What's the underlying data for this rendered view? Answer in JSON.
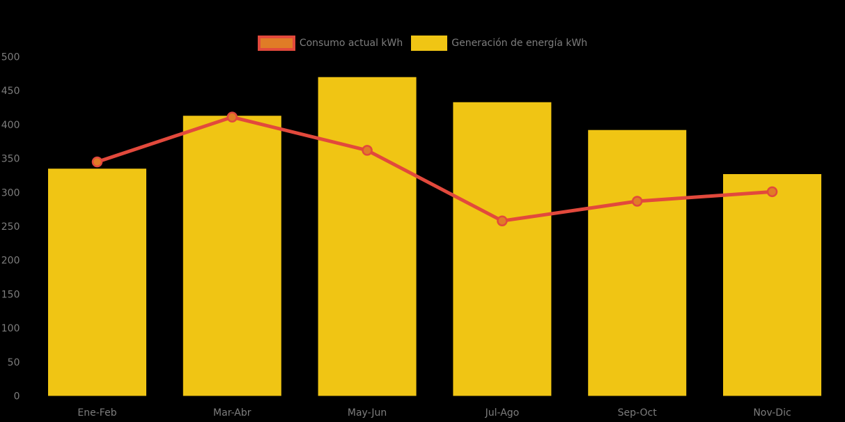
{
  "chart_data": {
    "type": "bar",
    "subtype": "bar-line-combo",
    "title": "",
    "xlabel": "",
    "ylabel": "",
    "categories": [
      "Ene-Feb",
      "Mar-Abr",
      "May-Jun",
      "Jul-Ago",
      "Sep-Oct",
      "Nov-Dic"
    ],
    "series": [
      {
        "name": "Consumo actual kWh",
        "type": "line",
        "values": [
          345,
          411,
          362,
          258,
          287,
          301
        ],
        "color": "#e2493c",
        "point_color": "#e07c26"
      },
      {
        "name": "Generación de energía kWh",
        "type": "bar",
        "values": [
          335,
          413,
          470,
          433,
          392,
          327
        ],
        "color": "#f0c514"
      }
    ],
    "ylim": [
      0,
      500
    ],
    "yticks": [
      0,
      50,
      100,
      150,
      200,
      250,
      300,
      350,
      400,
      450,
      500
    ],
    "grid": false,
    "legend_position": "top-center"
  },
  "colors": {
    "background": "#000000",
    "axis_text": "#7d7d7d",
    "bar_yellow": "#f0c514",
    "line_red": "#e2493c",
    "point_orange": "#e07c26"
  }
}
